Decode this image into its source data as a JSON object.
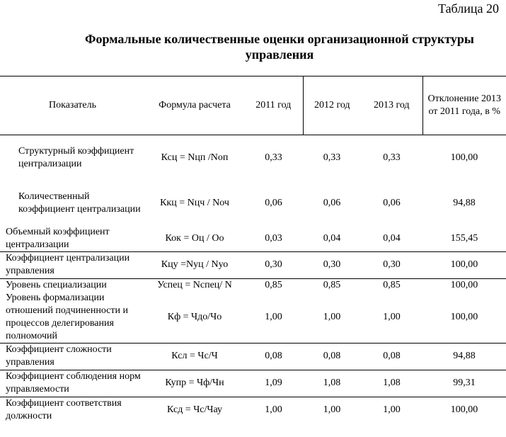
{
  "caption": "Таблица 20",
  "title": "Формальные количественные оценки организационной структуры управления",
  "table": {
    "header": [
      "Показатель",
      "Формула расчета",
      "2011 год",
      "2012 год",
      "2013 год",
      "Отклонение 2013 от 2011 года, в %"
    ],
    "rows": [
      [
        "Структурный коэффициент централизации",
        "Ксц = Nцп /Nоп",
        "0,33",
        "0,33",
        "0,33",
        "100,00"
      ],
      [
        "Количественный коэффициент централизации",
        "Ккц = Nцч / Nоч",
        "0,06",
        "0,06",
        "0,06",
        "94,88"
      ],
      [
        "Объемный коэффициент централизации",
        "Кок = Оц / Оо",
        "0,03",
        "0,04",
        "0,04",
        "155,45"
      ],
      [
        "Коэффициент централизации управления",
        "Кцу =Nуц / Nуо",
        "0,30",
        "0,30",
        "0,30",
        "100,00"
      ],
      [
        "Уровень специализации",
        "Успец = Nспец/ N",
        "0,85",
        "0,85",
        "0,85",
        "100,00"
      ],
      [
        "Уровень формализации отношений подчиненности и процессов делегирования полномочий",
        "Кф = Чдо/Чо",
        "1,00",
        "1,00",
        "1,00",
        "100,00"
      ],
      [
        "Коэффициент сложности управления",
        "Ксл = Чс/Ч",
        "0,08",
        "0,08",
        "0,08",
        "94,88"
      ],
      [
        "Коэффициент соблюдения норм управляемости",
        "Купр = Чф/Чн",
        "1,09",
        "1,08",
        "1,08",
        "99,31"
      ],
      [
        "Коэффициент соответствия должности",
        "Ксд = Чс/Чау",
        "1,00",
        "1,00",
        "1,00",
        "100,00"
      ]
    ]
  }
}
